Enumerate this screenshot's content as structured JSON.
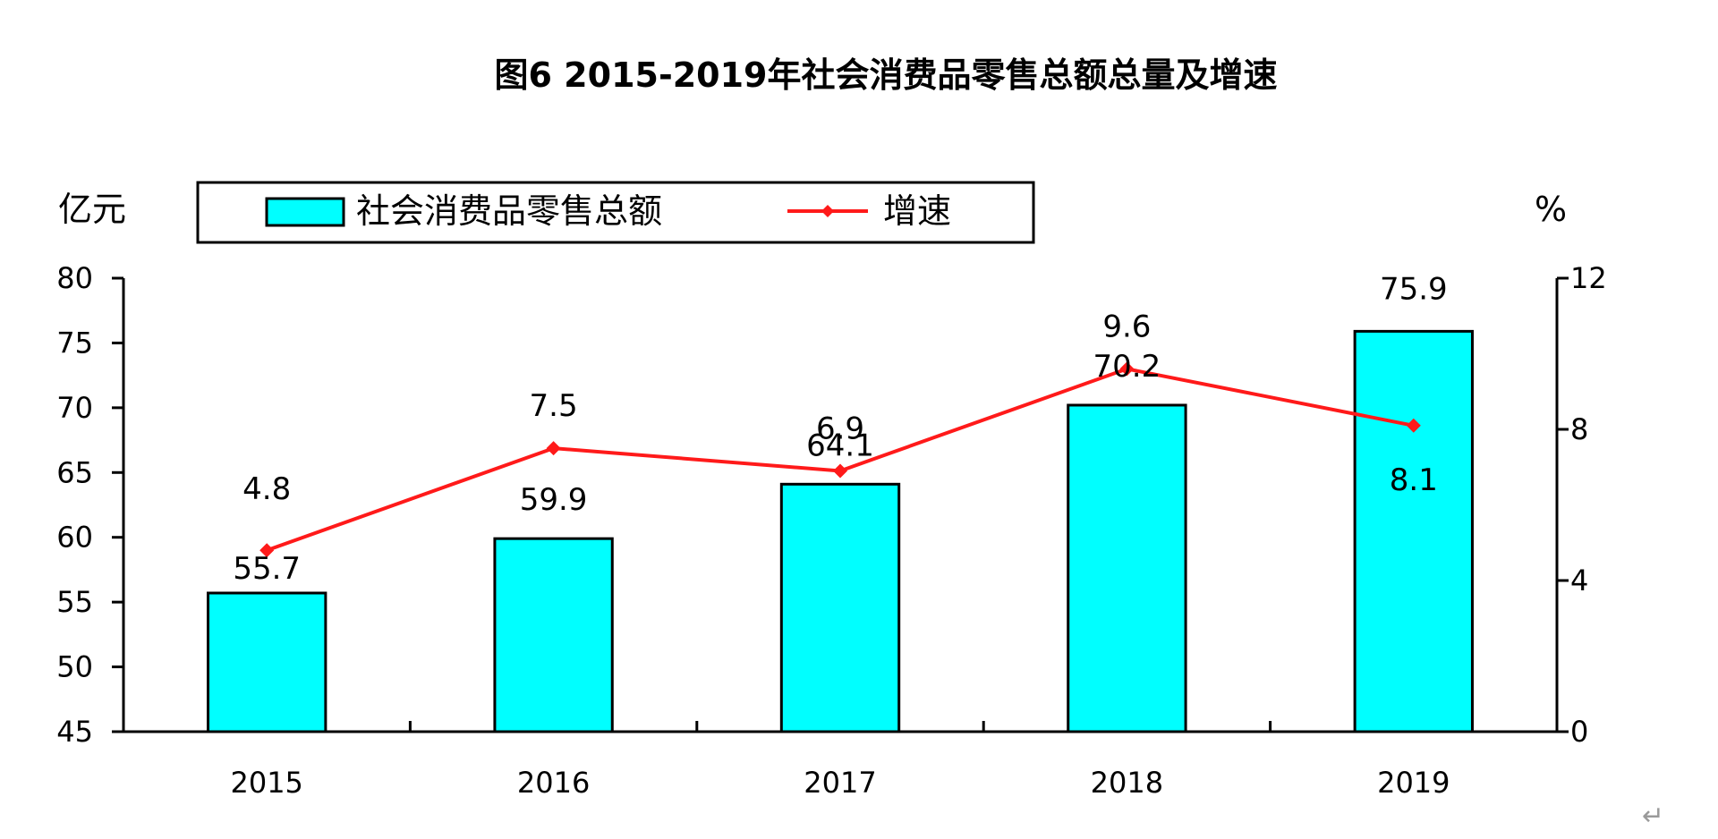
{
  "chart_data": {
    "type": "bar",
    "title": "图6 2015-2019年社会消费品零售总额总量及增速",
    "categories": [
      "2015",
      "2016",
      "2017",
      "2018",
      "2019"
    ],
    "series": [
      {
        "name": "社会消费品零售总额",
        "type": "bar",
        "axis": "left",
        "color": "#00ffff",
        "values": [
          55.7,
          59.9,
          64.1,
          70.2,
          75.9
        ]
      },
      {
        "name": "增速",
        "type": "line",
        "axis": "right",
        "color": "#ff1a1a",
        "values": [
          4.8,
          7.5,
          6.9,
          9.6,
          8.1
        ]
      }
    ],
    "left_axis": {
      "unit": "亿元",
      "ylim": [
        45,
        80
      ],
      "ticks": [
        "80",
        "75",
        "70",
        "65",
        "60",
        "55",
        "50",
        "45"
      ]
    },
    "right_axis": {
      "unit": "%",
      "ylim": [
        0,
        12
      ],
      "ticks": [
        "12",
        "8",
        "4",
        "0"
      ]
    },
    "legend": {
      "position": "top-left",
      "bar_label": "社会消费品零售总额",
      "line_label": "增速"
    },
    "grid": false
  },
  "return_mark": "↵"
}
